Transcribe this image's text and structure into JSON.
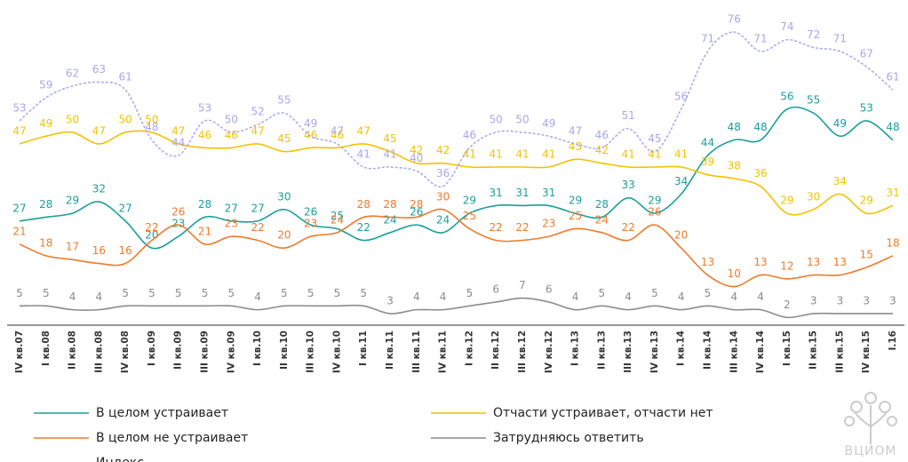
{
  "chart_data": {
    "type": "line",
    "categories": [
      "IV кв.07",
      "I кв.08",
      "II кв.08",
      "III кв.08",
      "IV кв.08",
      "I кв.09",
      "II кв.09",
      "III кв.09",
      "IV кв.09",
      "I кв.10",
      "II кв.10",
      "III кв.10",
      "IV кв.10",
      "I кв.11",
      "II кв.11",
      "III кв.11",
      "IV кв.11",
      "I кв.12",
      "II кв.12",
      "III кв.12",
      "IV кв.12",
      "I кв.13",
      "II кв.13",
      "III кв.13",
      "IV кв.13",
      "I кв.14",
      "II кв.14",
      "III кв.14",
      "IV кв.14",
      "I кв.15",
      "II кв.15",
      "III кв.15",
      "IV кв.15",
      "I.16"
    ],
    "ylim": [
      0,
      82
    ],
    "series": [
      {
        "name": "В целом устраивает",
        "color": "#1a9e9b",
        "line_style": "solid",
        "values": [
          27,
          28,
          29,
          32,
          27,
          20,
          23,
          28,
          27,
          27,
          30,
          26,
          25,
          22,
          24,
          26,
          24,
          29,
          31,
          31,
          31,
          29,
          28,
          33,
          29,
          34,
          44,
          48,
          48,
          56,
          55,
          49,
          53,
          48
        ]
      },
      {
        "name": "Отчасти устраивает, отчасти нет",
        "color": "#f2c200",
        "line_style": "solid",
        "values": [
          47,
          49,
          50,
          47,
          50,
          50,
          47,
          46,
          46,
          47,
          45,
          46,
          46,
          47,
          45,
          42,
          42,
          41,
          41,
          41,
          41,
          43,
          42,
          41,
          41,
          41,
          39,
          38,
          36,
          29,
          30,
          34,
          29,
          31
        ]
      },
      {
        "name": "В целом не устраивает",
        "color": "#f07a2a",
        "line_style": "solid",
        "values": [
          21,
          18,
          17,
          16,
          16,
          22,
          26,
          21,
          23,
          22,
          20,
          23,
          24,
          28,
          28,
          28,
          30,
          25,
          22,
          22,
          23,
          25,
          24,
          22,
          26,
          20,
          13,
          10,
          13,
          12,
          13,
          13,
          15,
          18
        ]
      },
      {
        "name": "Затрудняюсь ответить",
        "color": "#8c8c8c",
        "line_style": "solid",
        "values": [
          5,
          5,
          4,
          4,
          5,
          5,
          5,
          5,
          5,
          4,
          5,
          5,
          5,
          5,
          3,
          4,
          4,
          5,
          6,
          7,
          6,
          4,
          5,
          4,
          5,
          4,
          5,
          4,
          4,
          2,
          3,
          3,
          3,
          3
        ]
      },
      {
        "name": "Индекс",
        "color": "#a8a6ee",
        "line_style": "dashed",
        "values": [
          53,
          59,
          62,
          63,
          61,
          48,
          44,
          53,
          50,
          52,
          55,
          49,
          47,
          41,
          41,
          40,
          36,
          46,
          50,
          50,
          49,
          47,
          46,
          51,
          45,
          56,
          71,
          76,
          71,
          74,
          72,
          71,
          67,
          61
        ]
      }
    ],
    "logo": "ВЦИОМ"
  }
}
